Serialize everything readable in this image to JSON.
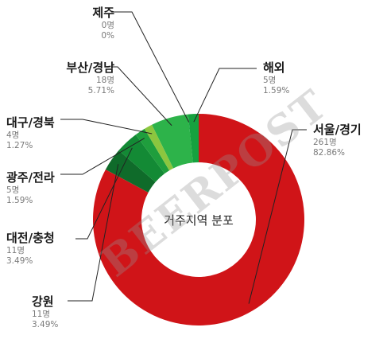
{
  "chart_data": {
    "type": "pie",
    "center_label": "거주지역 분포",
    "slices": [
      {
        "name": "서울/경기",
        "count_text": "261명",
        "percent_text": "82.86%",
        "value": 82.86,
        "color": "#d01418"
      },
      {
        "name": "강원",
        "count_text": "11명",
        "percent_text": "3.49%",
        "value": 3.49,
        "color": "#0f6b2a"
      },
      {
        "name": "대전/충청",
        "count_text": "11명",
        "percent_text": "3.49%",
        "value": 3.49,
        "color": "#138a35"
      },
      {
        "name": "광주/전라",
        "count_text": "5명",
        "percent_text": "1.59%",
        "value": 1.59,
        "color": "#1f9e3d"
      },
      {
        "name": "대구/경북",
        "count_text": "4명",
        "percent_text": "1.27%",
        "value": 1.27,
        "color": "#8cc63f"
      },
      {
        "name": "부산/경남",
        "count_text": "18명",
        "percent_text": "5.71%",
        "value": 5.71,
        "color": "#2db34a"
      },
      {
        "name": "제주",
        "count_text": "0명",
        "percent_text": "0%",
        "value": 0,
        "color": "#2db34a"
      },
      {
        "name": "해외",
        "count_text": "5명",
        "percent_text": "1.59%",
        "value": 1.59,
        "color": "#16a23f"
      }
    ]
  },
  "watermark": "BEERPOST"
}
